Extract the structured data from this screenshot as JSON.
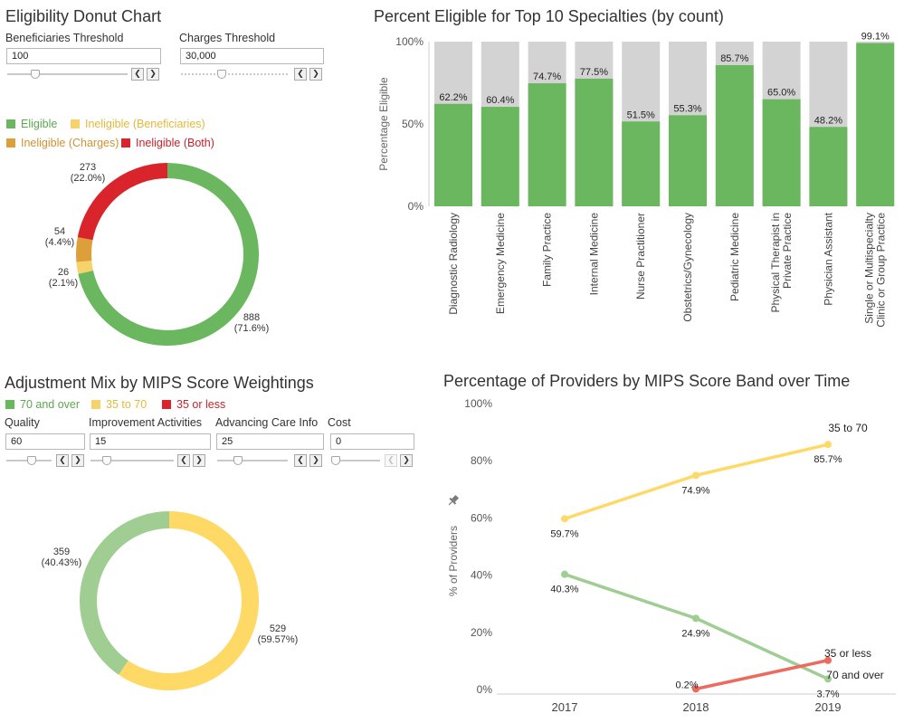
{
  "colors": {
    "eligible": "#6ab75f",
    "ineligible_beneficiaries": "#f5d36a",
    "ineligible_charges": "#dd9f3a",
    "ineligible_both": "#d9242b",
    "bar_remainder": "#d3d3d3",
    "band_70_over": "#9fcd92",
    "band_35_70": "#fed966",
    "band_35_less": "#ec6b5e"
  },
  "eligibility": {
    "title": "Eligibility Donut Chart",
    "beneficiaries_label": "Beneficiaries Threshold",
    "beneficiaries_value": "100",
    "beneficiaries_fraction": 0.25,
    "charges_label": "Charges Threshold",
    "charges_value": "30,000",
    "charges_fraction": 0.3,
    "legend": [
      "Eligible",
      "Ineligible (Beneficiaries)",
      "Ineligible (Charges)",
      "Ineligible (Both)"
    ]
  },
  "mips": {
    "title": "Adjustment Mix by MIPS Score Weightings",
    "legend": [
      "70 and over",
      "35 to 70",
      "35 or less"
    ],
    "params": [
      {
        "label": "Quality",
        "value": "60",
        "fraction": 0.25
      },
      {
        "label": "Improvement Activities",
        "value": "15",
        "fraction": 0.1
      },
      {
        "label": "Advancing Care Info",
        "value": "25",
        "fraction": 0.2
      },
      {
        "label": "Cost",
        "value": "0",
        "fraction": 0.0
      }
    ]
  },
  "bar_panel": {
    "title": "Percent Eligible for Top 10 Specialties (by count)"
  },
  "line_panel": {
    "title": "Percentage of Providers by MIPS Score Band over Time",
    "pin_icon": "pin-icon"
  },
  "step_icons": {
    "prev": "❮",
    "next": "❯"
  },
  "chart_data": [
    {
      "type": "pie",
      "title": "Eligibility Donut Chart",
      "slices": [
        {
          "name": "Eligible",
          "value": 888,
          "label": "888",
          "pct_label": "(71.6%)"
        },
        {
          "name": "Ineligible (Beneficiaries)",
          "value": 26,
          "label": "26",
          "pct_label": "(2.1%)"
        },
        {
          "name": "Ineligible (Charges)",
          "value": 54,
          "label": "54",
          "pct_label": "(4.4%)"
        },
        {
          "name": "Ineligible (Both)",
          "value": 273,
          "label": "273",
          "pct_label": "(22.0%)"
        }
      ]
    },
    {
      "type": "bar",
      "title": "Percent Eligible for Top 10 Specialties (by count)",
      "ylabel": "Percentage Eligible",
      "ylim": [
        0,
        100
      ],
      "yticks": [
        "0%",
        "50%",
        "100%"
      ],
      "categories": [
        [
          "Diagnostic Radiology"
        ],
        [
          "Emergency Medicine"
        ],
        [
          "Family Practice"
        ],
        [
          "Internal Medicine"
        ],
        [
          "Nurse Practitioner"
        ],
        [
          "Obstetrics/Gynecology"
        ],
        [
          "Pediatric Medicine"
        ],
        [
          "Physical Therapist in",
          "Private Practice"
        ],
        [
          "Physician Assistant"
        ],
        [
          "Single or Multispecialty",
          "Clinic or Group Practice"
        ]
      ],
      "values": [
        62.2,
        60.4,
        74.7,
        77.5,
        51.5,
        55.3,
        85.7,
        65.0,
        48.2,
        99.1
      ],
      "value_labels": [
        "62.2%",
        "60.4%",
        "74.7%",
        "77.5%",
        "51.5%",
        "55.3%",
        "85.7%",
        "65.0%",
        "48.2%",
        "99.1%"
      ]
    },
    {
      "type": "pie",
      "title": "Adjustment Mix by MIPS Score Weightings",
      "slices": [
        {
          "name": "35 to 70",
          "value": 529,
          "label": "529",
          "pct_label": "(59.57%)"
        },
        {
          "name": "70 and over",
          "value": 359,
          "label": "359",
          "pct_label": "(40.43%)"
        }
      ]
    },
    {
      "type": "line",
      "title": "Percentage of Providers by MIPS Score Band over Time",
      "ylabel": "% of Providers",
      "ylim": [
        0,
        100
      ],
      "yticks": [
        "0%",
        "20%",
        "40%",
        "60%",
        "80%",
        "100%"
      ],
      "x": [
        "2017",
        "2018",
        "2019"
      ],
      "series": [
        {
          "name": "35 to 70",
          "values": [
            59.7,
            74.9,
            85.7
          ],
          "labels": [
            "59.7%",
            "74.9%",
            "85.7%"
          ]
        },
        {
          "name": "70 and over",
          "values": [
            40.3,
            24.9,
            3.7
          ],
          "labels": [
            "40.3%",
            "24.9%",
            "3.7%"
          ]
        },
        {
          "name": "35 or less",
          "values": [
            null,
            0.2,
            10.2
          ],
          "labels": [
            "",
            "0.2%",
            ""
          ]
        }
      ]
    }
  ]
}
